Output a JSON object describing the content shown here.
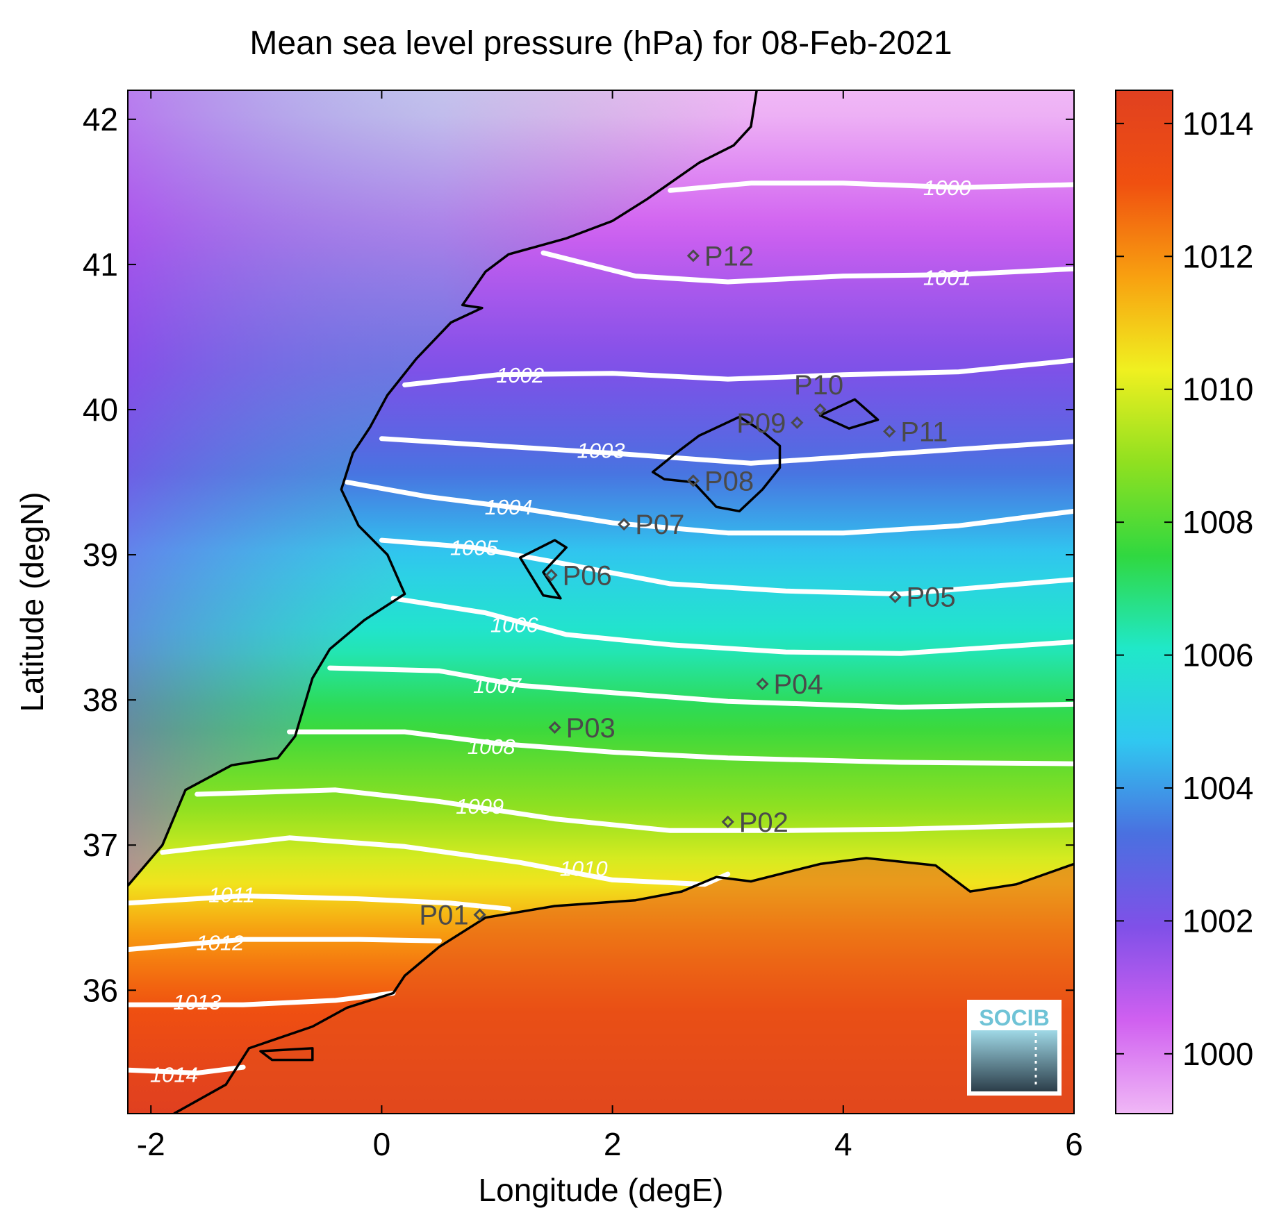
{
  "map_data": {
    "title": "Mean sea level pressure (hPa) for 08-Feb-2021",
    "xlabel": "Longitude (degE)",
    "ylabel": "Latitude (degN)",
    "xlim": [
      -2.2,
      6.0
    ],
    "ylim": [
      35.15,
      42.2
    ],
    "xticks": [
      -2,
      0,
      2,
      4,
      6
    ],
    "yticks": [
      36,
      37,
      38,
      39,
      40,
      41,
      42
    ],
    "colorbar": {
      "ticks": [
        1000,
        1002,
        1004,
        1006,
        1008,
        1010,
        1012,
        1014
      ],
      "range": [
        999.1,
        1014.5
      ],
      "colors": [
        "#f0b8f6",
        "#d060f0",
        "#8050e8",
        "#4a70e0",
        "#30c8f0",
        "#20e8c8",
        "#30d840",
        "#90e020",
        "#f0f020",
        "#f8a010",
        "#f05010",
        "#e04020"
      ]
    },
    "contours": [
      {
        "label": "1000",
        "points": [
          [
            2.5,
            41.51
          ],
          [
            3.2,
            41.56
          ],
          [
            4.0,
            41.56
          ],
          [
            5.0,
            41.53
          ],
          [
            6.0,
            41.55
          ]
        ],
        "label_at": [
          4.9,
          41.53
        ]
      },
      {
        "label": "1001",
        "points": [
          [
            1.4,
            41.08
          ],
          [
            2.2,
            40.92
          ],
          [
            3.0,
            40.88
          ],
          [
            4.0,
            40.92
          ],
          [
            5.0,
            40.93
          ],
          [
            6.0,
            40.97
          ]
        ],
        "label_at": [
          4.9,
          40.91
        ]
      },
      {
        "label": "1002",
        "points": [
          [
            0.2,
            40.17
          ],
          [
            1.0,
            40.24
          ],
          [
            2.0,
            40.25
          ],
          [
            3.0,
            40.21
          ],
          [
            4.0,
            40.24
          ],
          [
            5.0,
            40.26
          ],
          [
            6.0,
            40.34
          ]
        ],
        "label_at": [
          1.2,
          40.24
        ]
      },
      {
        "label": "1003",
        "points": [
          [
            0.0,
            39.8
          ],
          [
            1.0,
            39.75
          ],
          [
            2.0,
            39.7
          ],
          [
            3.2,
            39.63
          ],
          [
            4.5,
            39.7
          ],
          [
            6.0,
            39.78
          ]
        ],
        "label_at": [
          1.9,
          39.72
        ]
      },
      {
        "label": "1004",
        "points": [
          [
            -0.3,
            39.5
          ],
          [
            0.4,
            39.4
          ],
          [
            1.2,
            39.32
          ],
          [
            2.0,
            39.22
          ],
          [
            3.0,
            39.15
          ],
          [
            4.0,
            39.15
          ],
          [
            5.0,
            39.2
          ],
          [
            6.0,
            39.3
          ]
        ],
        "label_at": [
          1.1,
          39.33
        ]
      },
      {
        "label": "1005",
        "points": [
          [
            0.0,
            39.1
          ],
          [
            0.8,
            39.05
          ],
          [
            1.5,
            38.95
          ],
          [
            2.5,
            38.8
          ],
          [
            3.5,
            38.75
          ],
          [
            4.5,
            38.73
          ],
          [
            6.0,
            38.83
          ]
        ],
        "label_at": [
          0.8,
          39.05
        ]
      },
      {
        "label": "1006",
        "points": [
          [
            0.1,
            38.7
          ],
          [
            0.9,
            38.6
          ],
          [
            1.6,
            38.45
          ],
          [
            2.5,
            38.38
          ],
          [
            3.5,
            38.33
          ],
          [
            4.5,
            38.32
          ],
          [
            6.0,
            38.4
          ]
        ],
        "label_at": [
          1.15,
          38.52
        ]
      },
      {
        "label": "1007",
        "points": [
          [
            -0.45,
            38.22
          ],
          [
            0.5,
            38.2
          ],
          [
            1.2,
            38.1
          ],
          [
            2.0,
            38.05
          ],
          [
            3.0,
            37.99
          ],
          [
            4.5,
            37.95
          ],
          [
            6.0,
            37.97
          ]
        ],
        "label_at": [
          1.0,
          38.1
        ]
      },
      {
        "label": "1008",
        "points": [
          [
            -0.8,
            37.78
          ],
          [
            0.2,
            37.78
          ],
          [
            1.0,
            37.7
          ],
          [
            2.0,
            37.64
          ],
          [
            3.0,
            37.6
          ],
          [
            4.5,
            37.57
          ],
          [
            6.0,
            37.56
          ]
        ],
        "label_at": [
          0.95,
          37.68
        ]
      },
      {
        "label": "1009",
        "points": [
          [
            -1.6,
            37.35
          ],
          [
            -0.4,
            37.38
          ],
          [
            0.5,
            37.3
          ],
          [
            1.5,
            37.18
          ],
          [
            2.5,
            37.1
          ],
          [
            3.5,
            37.1
          ],
          [
            4.5,
            37.11
          ],
          [
            6.0,
            37.14
          ]
        ],
        "label_at": [
          0.85,
          37.27
        ]
      },
      {
        "label": "1010",
        "points": [
          [
            -1.9,
            36.95
          ],
          [
            -0.8,
            37.05
          ],
          [
            0.2,
            36.99
          ],
          [
            1.2,
            36.88
          ],
          [
            2.0,
            36.76
          ],
          [
            2.8,
            36.73
          ],
          [
            3.0,
            36.8
          ]
        ],
        "label_at": [
          1.75,
          36.84
        ]
      },
      {
        "label": "1011",
        "points": [
          [
            -2.2,
            36.6
          ],
          [
            -1.2,
            36.65
          ],
          [
            -0.2,
            36.63
          ],
          [
            0.6,
            36.6
          ],
          [
            1.1,
            36.56
          ]
        ],
        "label_at": [
          -1.3,
          36.66
        ]
      },
      {
        "label": "1012",
        "points": [
          [
            -2.2,
            36.28
          ],
          [
            -1.2,
            36.35
          ],
          [
            -0.2,
            36.35
          ],
          [
            0.5,
            36.34
          ]
        ],
        "label_at": [
          -1.4,
          36.33
        ]
      },
      {
        "label": "1013",
        "points": [
          [
            -2.2,
            35.9
          ],
          [
            -1.2,
            35.9
          ],
          [
            -0.4,
            35.93
          ],
          [
            0.1,
            35.98
          ]
        ],
        "label_at": [
          -1.6,
          35.92
        ]
      },
      {
        "label": "1014",
        "points": [
          [
            -2.2,
            35.45
          ],
          [
            -1.6,
            35.43
          ],
          [
            -1.2,
            35.47
          ]
        ],
        "label_at": [
          -1.8,
          35.42
        ]
      }
    ],
    "coastlines": [
      [
        [
          3.25,
          42.2
        ],
        [
          3.2,
          41.95
        ],
        [
          3.05,
          41.82
        ],
        [
          2.75,
          41.7
        ],
        [
          2.3,
          41.45
        ],
        [
          2.0,
          41.3
        ],
        [
          1.6,
          41.18
        ],
        [
          1.1,
          41.07
        ],
        [
          0.9,
          40.95
        ],
        [
          0.7,
          40.72
        ],
        [
          0.87,
          40.7
        ],
        [
          0.6,
          40.6
        ],
        [
          0.3,
          40.35
        ],
        [
          0.05,
          40.1
        ],
        [
          -0.1,
          39.88
        ],
        [
          -0.25,
          39.7
        ],
        [
          -0.35,
          39.45
        ],
        [
          -0.2,
          39.2
        ],
        [
          0.05,
          39.0
        ],
        [
          0.2,
          38.73
        ],
        [
          -0.15,
          38.55
        ],
        [
          -0.45,
          38.35
        ],
        [
          -0.6,
          38.15
        ],
        [
          -0.75,
          37.75
        ],
        [
          -0.9,
          37.6
        ],
        [
          -1.3,
          37.55
        ],
        [
          -1.7,
          37.38
        ],
        [
          -1.9,
          37.0
        ],
        [
          -2.2,
          36.72
        ]
      ],
      [
        [
          -1.8,
          35.15
        ],
        [
          -1.35,
          35.35
        ],
        [
          -1.15,
          35.6
        ],
        [
          -0.6,
          35.75
        ],
        [
          -0.3,
          35.88
        ],
        [
          0.1,
          35.98
        ],
        [
          0.2,
          36.1
        ],
        [
          0.5,
          36.3
        ],
        [
          0.9,
          36.5
        ],
        [
          1.5,
          36.58
        ],
        [
          2.2,
          36.62
        ],
        [
          2.6,
          36.68
        ],
        [
          2.9,
          36.78
        ],
        [
          3.2,
          36.75
        ],
        [
          3.8,
          36.87
        ],
        [
          4.2,
          36.91
        ],
        [
          4.8,
          36.86
        ],
        [
          5.1,
          36.68
        ],
        [
          5.5,
          36.73
        ],
        [
          6.0,
          36.87
        ]
      ],
      [
        [
          2.35,
          39.57
        ],
        [
          2.55,
          39.7
        ],
        [
          2.75,
          39.82
        ],
        [
          3.1,
          39.95
        ],
        [
          3.3,
          39.85
        ],
        [
          3.45,
          39.75
        ],
        [
          3.45,
          39.6
        ],
        [
          3.3,
          39.45
        ],
        [
          3.1,
          39.3
        ],
        [
          2.9,
          39.33
        ],
        [
          2.7,
          39.5
        ],
        [
          2.45,
          39.52
        ],
        [
          2.35,
          39.57
        ]
      ],
      [
        [
          3.8,
          39.96
        ],
        [
          4.1,
          40.07
        ],
        [
          4.3,
          39.93
        ],
        [
          4.05,
          39.87
        ],
        [
          3.8,
          39.96
        ]
      ],
      [
        [
          1.2,
          38.98
        ],
        [
          1.5,
          39.1
        ],
        [
          1.6,
          39.05
        ],
        [
          1.4,
          38.88
        ],
        [
          1.55,
          38.7
        ],
        [
          1.4,
          38.72
        ],
        [
          1.2,
          38.98
        ]
      ],
      [
        [
          -1.05,
          35.58
        ],
        [
          -0.6,
          35.6
        ],
        [
          -0.6,
          35.52
        ],
        [
          -0.95,
          35.52
        ],
        [
          -1.05,
          35.58
        ]
      ]
    ],
    "stations": [
      {
        "id": "P01",
        "lon": 0.85,
        "lat": 36.52,
        "label_side": "left"
      },
      {
        "id": "P02",
        "lon": 3.0,
        "lat": 37.16,
        "label_side": "right"
      },
      {
        "id": "P03",
        "lon": 1.5,
        "lat": 37.81,
        "label_side": "right"
      },
      {
        "id": "P04",
        "lon": 3.3,
        "lat": 38.11,
        "label_side": "right"
      },
      {
        "id": "P05",
        "lon": 4.45,
        "lat": 38.71,
        "label_side": "right"
      },
      {
        "id": "P06",
        "lon": 1.47,
        "lat": 38.86,
        "label_side": "right"
      },
      {
        "id": "P07",
        "lon": 2.1,
        "lat": 39.21,
        "label_side": "right"
      },
      {
        "id": "P08",
        "lon": 2.7,
        "lat": 39.51,
        "label_side": "right"
      },
      {
        "id": "P09",
        "lon": 3.6,
        "lat": 39.91,
        "label_side": "left"
      },
      {
        "id": "P10",
        "lon": 3.8,
        "lat": 40.0,
        "label_side": "top"
      },
      {
        "id": "P11",
        "lon": 4.4,
        "lat": 39.85,
        "label_side": "right"
      },
      {
        "id": "P12",
        "lon": 2.7,
        "lat": 41.06,
        "label_side": "right"
      }
    ],
    "logo_text": "SOCIB"
  }
}
